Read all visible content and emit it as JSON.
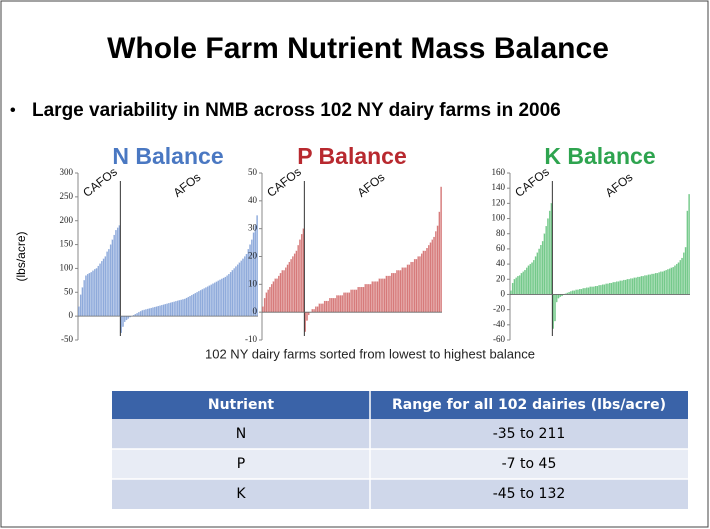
{
  "title": "Whole Farm Nutrient Mass Balance",
  "bullet": "Large variability  in NMB across 102 NY dairy farms in 2006",
  "caption": "102 NY dairy farms sorted from lowest to highest balance",
  "chart_data": [
    {
      "type": "bar",
      "title": "N Balance",
      "title_color": "#4a78c2",
      "y_label": "(lbs/acre)",
      "ylim": [
        -50,
        300
      ],
      "yticks": [
        -50,
        0,
        50,
        100,
        150,
        200,
        250,
        300
      ],
      "series": [
        {
          "name": "CAFOs",
          "color": "#8eaadb",
          "values": [
            20,
            45,
            60,
            75,
            85,
            88,
            90,
            92,
            95,
            98,
            100,
            105,
            110,
            115,
            120,
            125,
            135,
            140,
            150,
            160,
            170,
            180,
            185,
            190
          ]
        },
        {
          "name": "AFOs",
          "color": "#8eaadb",
          "values": [
            -35,
            -22,
            -12,
            -8,
            -5,
            -2,
            0,
            2,
            4,
            6,
            8,
            10,
            12,
            13,
            14,
            15,
            16,
            17,
            18,
            19,
            20,
            21,
            22,
            23,
            24,
            25,
            26,
            27,
            28,
            29,
            30,
            31,
            32,
            33,
            34,
            35,
            36,
            38,
            40,
            42,
            44,
            46,
            48,
            50,
            52,
            54,
            56,
            58,
            60,
            62,
            64,
            66,
            68,
            70,
            72,
            74,
            76,
            78,
            80,
            82,
            85,
            88,
            92,
            96,
            100,
            104,
            108,
            112,
            116,
            120,
            125,
            130,
            140,
            150,
            160,
            175,
            190,
            211
          ]
        }
      ]
    },
    {
      "type": "bar",
      "title": "P Balance",
      "title_color": "#b8292f",
      "ylim": [
        -10,
        50
      ],
      "yticks": [
        -10,
        0,
        10,
        20,
        30,
        40,
        50
      ],
      "series": [
        {
          "name": "CAFOs",
          "color": "#d67a7a",
          "values": [
            2,
            5,
            7,
            8,
            9,
            10,
            11,
            12,
            12,
            13,
            14,
            15,
            15,
            16,
            17,
            18,
            19,
            20,
            21,
            22,
            24,
            26,
            28,
            30
          ]
        },
        {
          "name": "AFOs",
          "color": "#d67a7a",
          "values": [
            -7,
            -3,
            -1,
            0,
            1,
            1,
            2,
            2,
            3,
            3,
            3,
            4,
            4,
            4,
            5,
            5,
            5,
            5,
            6,
            6,
            6,
            6,
            7,
            7,
            7,
            7,
            8,
            8,
            8,
            8,
            9,
            9,
            9,
            9,
            10,
            10,
            10,
            10,
            11,
            11,
            11,
            11,
            12,
            12,
            12,
            12,
            13,
            13,
            13,
            14,
            14,
            14,
            15,
            15,
            15,
            16,
            16,
            16,
            17,
            17,
            18,
            18,
            19,
            19,
            20,
            20,
            21,
            22,
            22,
            23,
            24,
            25,
            26,
            27,
            29,
            31,
            36,
            45
          ]
        }
      ]
    },
    {
      "type": "bar",
      "title": "K Balance",
      "title_color": "#2ea44f",
      "ylim": [
        -60,
        160
      ],
      "yticks": [
        -60,
        -40,
        -20,
        0,
        20,
        40,
        60,
        80,
        100,
        120,
        140,
        160
      ],
      "series": [
        {
          "name": "CAFOs",
          "color": "#74c98a",
          "values": [
            5,
            15,
            20,
            22,
            24,
            25,
            28,
            30,
            32,
            35,
            38,
            40,
            42,
            45,
            50,
            55,
            60,
            65,
            70,
            80,
            90,
            100,
            110,
            120
          ]
        },
        {
          "name": "AFOs",
          "color": "#74c98a",
          "values": [
            -45,
            -35,
            -10,
            -5,
            -3,
            -2,
            0,
            1,
            2,
            3,
            4,
            5,
            5,
            6,
            6,
            7,
            7,
            8,
            8,
            9,
            9,
            10,
            10,
            10,
            11,
            11,
            12,
            12,
            13,
            13,
            14,
            14,
            15,
            15,
            16,
            16,
            17,
            17,
            18,
            18,
            19,
            19,
            20,
            20,
            21,
            21,
            22,
            22,
            23,
            23,
            24,
            24,
            25,
            25,
            26,
            26,
            27,
            27,
            28,
            28,
            29,
            30,
            30,
            31,
            32,
            33,
            34,
            35,
            36,
            38,
            40,
            42,
            45,
            48,
            55,
            62,
            110,
            132
          ]
        }
      ]
    }
  ],
  "table": {
    "header": [
      "Nutrient",
      "Range for all 102 dairies (lbs/acre)"
    ],
    "rows": [
      [
        "N",
        "-35 to 211"
      ],
      [
        "P",
        "-7 to 45"
      ],
      [
        "K",
        "-45 to 132"
      ]
    ]
  }
}
